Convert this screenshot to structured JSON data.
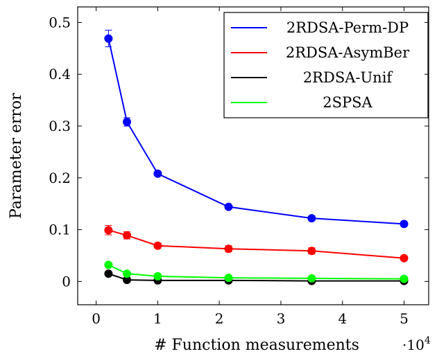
{
  "chart_data": {
    "type": "line",
    "xlabel": "# Function measurements",
    "ylabel": "Parameter error",
    "x_multiplier_label": "·10",
    "x_multiplier_exp": "4",
    "xlim": [
      -0.3,
      5.4
    ],
    "ylim": [
      -0.045,
      0.53
    ],
    "xticks": [
      0,
      1,
      2,
      3,
      4,
      5
    ],
    "yticks": [
      0,
      0.1,
      0.2,
      0.3,
      0.4,
      0.5
    ],
    "xtick_labels": [
      "0",
      "1",
      "2",
      "3",
      "4",
      "5"
    ],
    "ytick_labels": [
      "0",
      "0.1",
      "0.2",
      "0.3",
      "0.4",
      "0.5"
    ],
    "grid": false,
    "legend_position": "top-right",
    "x": [
      0.2,
      0.5,
      1.0,
      2.15,
      3.5,
      5.0
    ],
    "series": [
      {
        "name": "2RDSA-Perm-DP",
        "color": "#0000ff",
        "values": [
          0.469,
          0.308,
          0.208,
          0.144,
          0.122,
          0.111
        ],
        "errors": [
          0.016,
          0.008,
          0.003,
          0.002,
          0.002,
          0.002
        ]
      },
      {
        "name": "2RDSA-AsymBer",
        "color": "#ff0000",
        "values": [
          0.099,
          0.089,
          0.069,
          0.063,
          0.059,
          0.045
        ],
        "errors": [
          0.009,
          0.007,
          0.005,
          0.006,
          0.006,
          0.004
        ]
      },
      {
        "name": "2RDSA-Unif",
        "color": "#000000",
        "values": [
          0.015,
          0.003,
          0.002,
          0.002,
          0.001,
          0.001
        ],
        "errors": [
          0.002,
          0.001,
          0.001,
          0.001,
          0.001,
          0.001
        ]
      },
      {
        "name": "2SPSA",
        "color": "#00ff00",
        "values": [
          0.032,
          0.015,
          0.01,
          0.007,
          0.006,
          0.005
        ],
        "errors": [
          0.002,
          0.001,
          0.001,
          0.001,
          0.001,
          0.001
        ]
      }
    ]
  }
}
